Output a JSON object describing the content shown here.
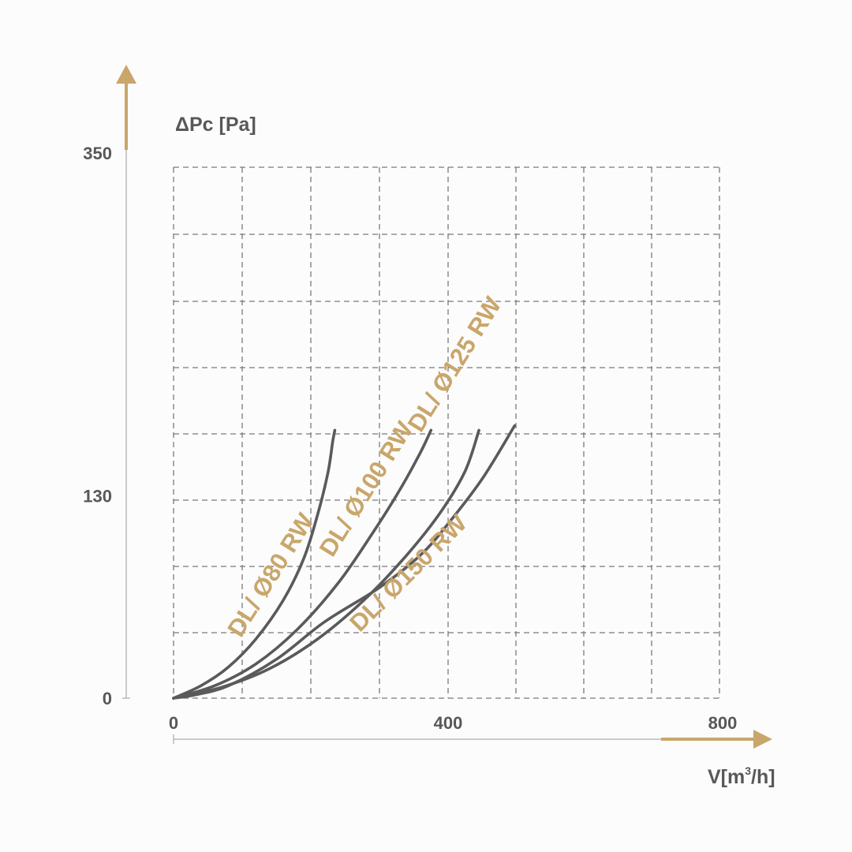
{
  "colors": {
    "accent": "#c9a66b",
    "curve": "#5a5a5c",
    "text": "#58585a",
    "grid": "#7a7a7c"
  },
  "chart_data": {
    "type": "line",
    "title": "",
    "ylabel": "ΔPc [Pa]",
    "xlabel_main": "V[m",
    "xlabel_sup": "3",
    "xlabel_tail": "/h]",
    "xlim": [
      0,
      800
    ],
    "ylim": [
      0,
      350
    ],
    "x_ticks": [
      {
        "value": 0,
        "label": "0"
      },
      {
        "value": 400,
        "label": "400"
      },
      {
        "value": 800,
        "label": "800"
      }
    ],
    "y_ticks": [
      {
        "value": 0,
        "label": "0"
      },
      {
        "value": 130,
        "label": "130"
      },
      {
        "value": 350,
        "label": "350"
      }
    ],
    "grid": true,
    "series": [
      {
        "name": "DL/ Ø80 RW",
        "x": [
          0,
          40,
          80,
          120,
          160,
          190,
          210,
          225,
          232,
          235
        ],
        "y": [
          0,
          8,
          20,
          38,
          63,
          90,
          118,
          145,
          165,
          172
        ]
      },
      {
        "name": "DL/ Ø100 RW",
        "x": [
          0,
          60,
          120,
          180,
          240,
          290,
          330,
          360,
          375
        ],
        "y": [
          0,
          8,
          22,
          44,
          74,
          106,
          134,
          158,
          172
        ]
      },
      {
        "name": "DL/ Ø125 RW",
        "x": [
          0,
          70,
          140,
          210,
          280,
          340,
          390,
          425,
          445
        ],
        "y": [
          0,
          7,
          19,
          38,
          64,
          92,
          120,
          146,
          172
        ]
      },
      {
        "name": "DL/ Ø150 RW",
        "x": [
          0,
          30,
          80,
          150,
          220,
          300,
          360,
          400,
          450,
          497
        ],
        "y": [
          0,
          2,
          8,
          25,
          49,
          71,
          92,
          112,
          141,
          175
        ]
      }
    ]
  }
}
